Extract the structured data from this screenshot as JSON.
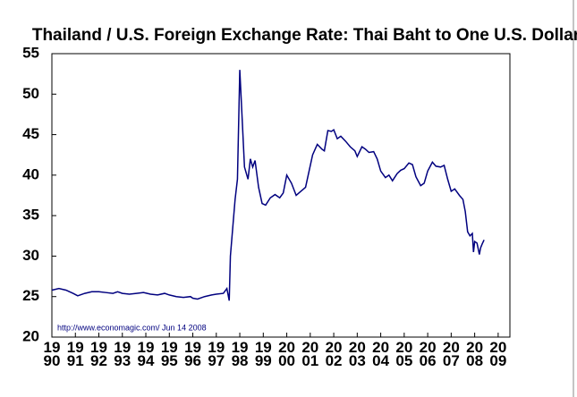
{
  "chart_data": {
    "type": "line",
    "title": "Thailand / U.S. Foreign Exchange Rate: Thai Baht to One U.S. Dollar",
    "annotation": "http://www.economagic.com/  Jun 14 2008",
    "color": "#00007f",
    "x": [
      1990.0,
      1990.3,
      1990.6,
      1990.9,
      1991.1,
      1991.4,
      1991.7,
      1992.0,
      1992.3,
      1992.6,
      1992.8,
      1993.0,
      1993.3,
      1993.6,
      1993.9,
      1994.2,
      1994.5,
      1994.8,
      1995.0,
      1995.3,
      1995.6,
      1995.9,
      1996.0,
      1996.2,
      1996.5,
      1996.8,
      1997.0,
      1997.3,
      1997.45,
      1997.55,
      1997.6,
      1997.7,
      1997.8,
      1997.9,
      1998.0,
      1998.1,
      1998.2,
      1998.35,
      1998.45,
      1998.55,
      1998.65,
      1998.8,
      1998.95,
      1999.1,
      1999.3,
      1999.5,
      1999.7,
      1999.85,
      2000.0,
      2000.2,
      2000.4,
      2000.6,
      2000.8,
      2000.95,
      2001.1,
      2001.3,
      2001.5,
      2001.6,
      2001.75,
      2001.9,
      2002.0,
      2002.15,
      2002.3,
      2002.5,
      2002.7,
      2002.9,
      2003.0,
      2003.2,
      2003.35,
      2003.5,
      2003.7,
      2003.85,
      2004.0,
      2004.2,
      2004.35,
      2004.5,
      2004.7,
      2004.85,
      2005.0,
      2005.2,
      2005.35,
      2005.5,
      2005.7,
      2005.85,
      2006.0,
      2006.2,
      2006.35,
      2006.55,
      2006.7,
      2006.85,
      2007.0,
      2007.15,
      2007.35,
      2007.5,
      2007.6,
      2007.7,
      2007.8,
      2007.9,
      2007.95,
      2008.0,
      2008.1,
      2008.2,
      2008.25,
      2008.32,
      2008.4
    ],
    "values": [
      25.8,
      26.0,
      25.8,
      25.4,
      25.1,
      25.4,
      25.6,
      25.6,
      25.5,
      25.4,
      25.6,
      25.4,
      25.3,
      25.4,
      25.5,
      25.3,
      25.2,
      25.4,
      25.2,
      25.0,
      24.9,
      25.0,
      24.8,
      24.7,
      25.0,
      25.2,
      25.3,
      25.4,
      26.0,
      24.5,
      30.0,
      33.5,
      37.0,
      39.5,
      53.0,
      47.0,
      41.0,
      39.5,
      42.0,
      41.0,
      41.8,
      38.5,
      36.5,
      36.3,
      37.2,
      37.6,
      37.2,
      37.8,
      40.0,
      39.0,
      37.5,
      38.0,
      38.5,
      40.5,
      42.5,
      43.8,
      43.2,
      43.0,
      45.5,
      45.4,
      45.6,
      44.5,
      44.8,
      44.2,
      43.5,
      43.0,
      42.3,
      43.5,
      43.2,
      42.8,
      42.9,
      42.0,
      40.5,
      39.7,
      40.0,
      39.3,
      40.2,
      40.6,
      40.8,
      41.5,
      41.3,
      39.8,
      38.7,
      39.0,
      40.5,
      41.6,
      41.1,
      41.0,
      41.2,
      39.5,
      38.0,
      38.3,
      37.5,
      37.0,
      35.5,
      33.0,
      32.5,
      32.8,
      30.5,
      31.8,
      31.6,
      30.2,
      31.0,
      31.5,
      32.0
    ],
    "xlim": [
      1990,
      2009.5
    ],
    "xticks": [
      {
        "value": 1990,
        "label": "19\n90"
      },
      {
        "value": 1991,
        "label": "19\n91"
      },
      {
        "value": 1992,
        "label": "19\n92"
      },
      {
        "value": 1993,
        "label": "19\n93"
      },
      {
        "value": 1994,
        "label": "19\n94"
      },
      {
        "value": 1995,
        "label": "19\n95"
      },
      {
        "value": 1996,
        "label": "19\n96"
      },
      {
        "value": 1997,
        "label": "19\n97"
      },
      {
        "value": 1998,
        "label": "19\n98"
      },
      {
        "value": 1999,
        "label": "19\n99"
      },
      {
        "value": 2000,
        "label": "20\n00"
      },
      {
        "value": 2001,
        "label": "20\n01"
      },
      {
        "value": 2002,
        "label": "20\n02"
      },
      {
        "value": 2003,
        "label": "20\n03"
      },
      {
        "value": 2004,
        "label": "20\n04"
      },
      {
        "value": 2005,
        "label": "20\n05"
      },
      {
        "value": 2006,
        "label": "20\n06"
      },
      {
        "value": 2007,
        "label": "20\n07"
      },
      {
        "value": 2008,
        "label": "20\n08"
      },
      {
        "value": 2009,
        "label": "20\n09"
      }
    ],
    "ylim": [
      20,
      55
    ],
    "yticks": [
      20,
      25,
      30,
      35,
      40,
      45,
      50,
      55
    ]
  }
}
